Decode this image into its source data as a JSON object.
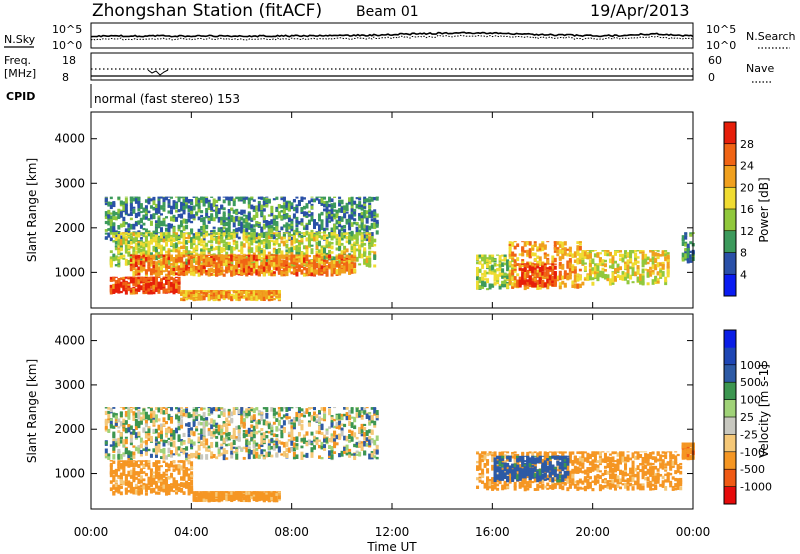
{
  "header": {
    "title": "Zhongshan Station (fitACF)",
    "beam": "Beam 01",
    "date": "19/Apr/2013"
  },
  "panels": {
    "nsky": {
      "label": "N.Sky",
      "tick_top": "10^5",
      "tick_bottom": "10^0"
    },
    "nsearch": {
      "label": "N.Search",
      "tick_top": "10^5",
      "tick_bottom": "10^0"
    },
    "freq": {
      "label_line1": "Freq.",
      "label_line2": "[MHz]",
      "tick_top": "18",
      "tick_bottom": "8"
    },
    "nave": {
      "label": "Nave",
      "tick_top": "60",
      "tick_bottom": "0"
    },
    "cpid": {
      "label": "CPID",
      "value": "normal (fast stereo) 153"
    }
  },
  "colors": {
    "power": [
      "#0a1cf2",
      "#2a50a8",
      "#3c9a5c",
      "#90c83c",
      "#f0dc32",
      "#f0a01e",
      "#f06414",
      "#e61e0a"
    ],
    "velocity": [
      "#e60a0a",
      "#f05a14",
      "#f59623",
      "#f5c878",
      "#c8c8c0",
      "#a0d278",
      "#3c9650",
      "#2d5aa5",
      "#1e46b4",
      "#0a1ee6"
    ]
  },
  "chart_data": [
    {
      "type": "heatmap",
      "name": "power",
      "ylabel": "Slant Range [km]",
      "ylim": [
        200,
        4600
      ],
      "yticks": [
        "1000",
        "2000",
        "3000",
        "4000"
      ],
      "yticks_values": [
        1000,
        2000,
        3000,
        4000
      ],
      "colorbar": {
        "label": "Power [dB]",
        "ticks": [
          "4",
          "8",
          "12",
          "16",
          "20",
          "24",
          "28"
        ],
        "range": [
          0,
          32
        ]
      },
      "regions": [
        {
          "t": [
            0.5,
            11.4
          ],
          "r": [
            1700,
            2700
          ],
          "level": 9
        },
        {
          "t": [
            0.7,
            11.3
          ],
          "r": [
            1100,
            1900
          ],
          "level": 16
        },
        {
          "t": [
            1.5,
            10.5
          ],
          "r": [
            900,
            1400
          ],
          "level": 24
        },
        {
          "t": [
            0.7,
            3.5
          ],
          "r": [
            500,
            900
          ],
          "level": 28
        },
        {
          "t": [
            3.5,
            7.5
          ],
          "r": [
            350,
            600
          ],
          "level": 22
        },
        {
          "t": [
            15.3,
            16.8
          ],
          "r": [
            600,
            1400
          ],
          "level": 15
        },
        {
          "t": [
            16.6,
            19.5
          ],
          "r": [
            600,
            1700
          ],
          "level": 22
        },
        {
          "t": [
            17.0,
            18.5
          ],
          "r": [
            650,
            1200
          ],
          "level": 28
        },
        {
          "t": [
            19.5,
            23.0
          ],
          "r": [
            700,
            1500
          ],
          "level": 18
        },
        {
          "t": [
            23.5,
            24.0
          ],
          "r": [
            1200,
            1900
          ],
          "level": 10
        }
      ]
    },
    {
      "type": "heatmap",
      "name": "velocity",
      "ylabel": "Slant Range [km]",
      "xlabel": "Time UT",
      "ylim": [
        200,
        4600
      ],
      "yticks": [
        "1000",
        "2000",
        "3000",
        "4000"
      ],
      "yticks_values": [
        1000,
        2000,
        3000,
        4000
      ],
      "xticks": [
        "00:00",
        "04:00",
        "08:00",
        "12:00",
        "16:00",
        "20:00",
        "00:00"
      ],
      "xticks_values": [
        0,
        4,
        8,
        12,
        16,
        20,
        24
      ],
      "colorbar": {
        "label": "Velocity [m s-1]",
        "ticks": [
          "-1000",
          "-500",
          "-100",
          "-25",
          "25",
          "100",
          "500",
          "1000"
        ]
      },
      "regions": [
        {
          "t": [
            0.5,
            11.4
          ],
          "r": [
            1300,
            2500
          ],
          "level": 0
        },
        {
          "t": [
            0.7,
            4.0
          ],
          "r": [
            500,
            1300
          ],
          "level": -200
        },
        {
          "t": [
            4.0,
            7.5
          ],
          "r": [
            350,
            600
          ],
          "level": -200
        },
        {
          "t": [
            15.3,
            23.5
          ],
          "r": [
            600,
            1500
          ],
          "level": -200
        },
        {
          "t": [
            16.0,
            19.0
          ],
          "r": [
            800,
            1400
          ],
          "level": 200
        },
        {
          "t": [
            23.5,
            24.0
          ],
          "r": [
            1300,
            1700
          ],
          "level": -400
        }
      ]
    }
  ]
}
